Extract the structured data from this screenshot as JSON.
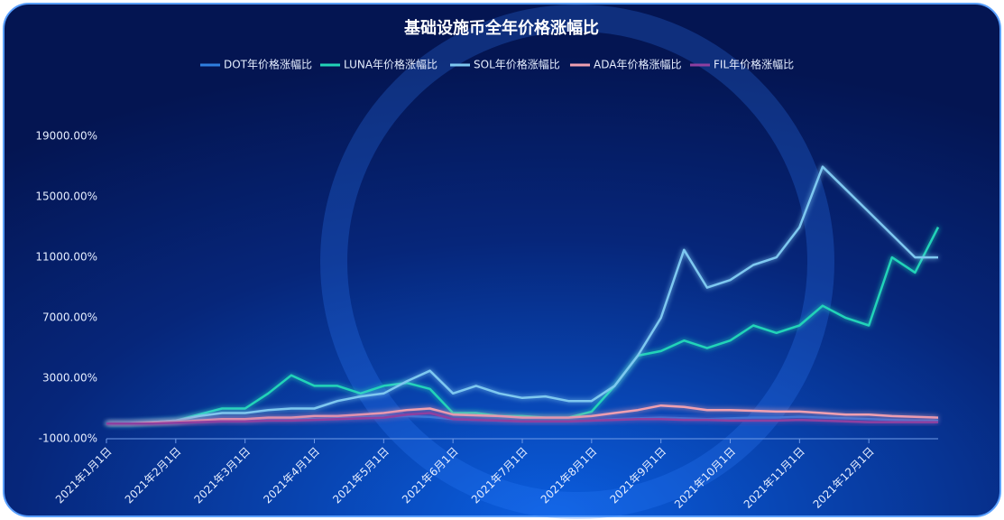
{
  "chart_data": {
    "type": "line",
    "title": "基础设施币全年价格涨幅比",
    "categories": [
      "2021年1月1日",
      null,
      null,
      "2021年2月1日",
      null,
      null,
      "2021年3月1日",
      null,
      null,
      "2021年4月1日",
      null,
      null,
      "2021年5月1日",
      null,
      null,
      "2021年6月1日",
      null,
      null,
      "2021年7月1日",
      null,
      null,
      "2021年8月1日",
      null,
      null,
      "2021年9月1日",
      null,
      null,
      "2021年10月1日",
      null,
      null,
      "2021年11月1日",
      null,
      null,
      "2021年12月1日",
      null,
      null,
      null
    ],
    "series": [
      {
        "name": "DOT年价格涨幅比",
        "color": "#2f7fe0",
        "values": [
          0,
          50,
          100,
          150,
          250,
          300,
          250,
          300,
          350,
          300,
          350,
          400,
          450,
          500,
          450,
          300,
          250,
          200,
          150,
          150,
          150,
          200,
          300,
          350,
          400,
          350,
          300,
          350,
          400,
          400,
          450,
          400,
          350,
          300,
          250,
          200,
          200
        ]
      },
      {
        "name": "LUNA年价格涨幅比",
        "color": "#22d3b8",
        "values": [
          0,
          0,
          100,
          200,
          600,
          1000,
          1000,
          2000,
          3200,
          2500,
          2500,
          2000,
          2500,
          2700,
          2300,
          700,
          700,
          500,
          500,
          400,
          400,
          800,
          2500,
          4500,
          4800,
          5500,
          5000,
          5500,
          6500,
          6000,
          6500,
          7800,
          7000,
          6500,
          11000,
          10000,
          13000
        ]
      },
      {
        "name": "SOL年价格涨幅比",
        "color": "#7ec8f0",
        "values": [
          0,
          0,
          100,
          200,
          500,
          700,
          700,
          900,
          1000,
          1000,
          1500,
          1800,
          2000,
          2800,
          3500,
          2000,
          2500,
          2000,
          1700,
          1800,
          1500,
          1500,
          2500,
          4500,
          7000,
          11500,
          9000,
          9500,
          10500,
          11000,
          13000,
          17000,
          15500,
          14000,
          12500,
          11000,
          11000
        ]
      },
      {
        "name": "ADA年价格涨幅比",
        "color": "#f0a0b0",
        "values": [
          0,
          0,
          50,
          100,
          200,
          300,
          300,
          400,
          400,
          500,
          500,
          600,
          700,
          900,
          1000,
          600,
          550,
          500,
          400,
          400,
          400,
          500,
          700,
          900,
          1200,
          1100,
          900,
          900,
          850,
          800,
          800,
          700,
          600,
          600,
          500,
          450,
          400
        ]
      },
      {
        "name": "FIL年价格涨幅比",
        "color": "#8e3fa0",
        "values": [
          0,
          0,
          0,
          50,
          100,
          150,
          150,
          200,
          200,
          250,
          300,
          350,
          400,
          600,
          700,
          300,
          250,
          200,
          150,
          150,
          150,
          200,
          250,
          300,
          300,
          250,
          250,
          200,
          200,
          200,
          250,
          200,
          150,
          100,
          100,
          100,
          100
        ]
      }
    ],
    "ylim": [
      -1000,
      22000
    ],
    "yticks": [
      {
        "value": -1000,
        "label": "-1000.00%"
      },
      {
        "value": 3000,
        "label": "3000.00%"
      },
      {
        "value": 7000,
        "label": "7000.00%"
      },
      {
        "value": 11000,
        "label": "11000.00%"
      },
      {
        "value": 15000,
        "label": "15000.00%"
      },
      {
        "value": 19000,
        "label": "19000.00%"
      }
    ]
  }
}
